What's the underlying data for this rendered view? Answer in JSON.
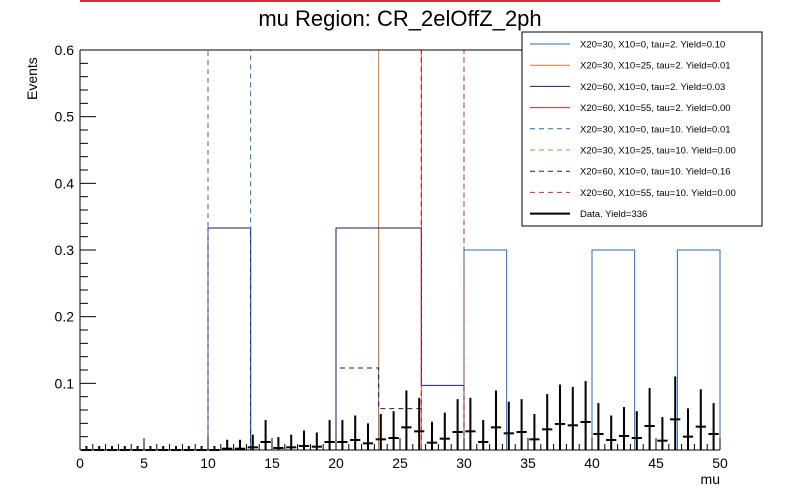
{
  "chart_data": {
    "type": "histogram",
    "title": "mu Region: CR_2elOffZ_2ph",
    "xlabel": "mu",
    "ylabel": "Events",
    "xlim": [
      0,
      50
    ],
    "ylim": [
      0,
      0.6
    ],
    "xticks": [
      0,
      5,
      10,
      15,
      20,
      25,
      30,
      35,
      40,
      45,
      50
    ],
    "yticks": [
      0.1,
      0.2,
      0.3,
      0.4,
      0.5,
      0.6
    ],
    "xtick_labels": [
      "0",
      "5",
      "10",
      "15",
      "20",
      "25",
      "30",
      "35",
      "40",
      "45",
      "50"
    ],
    "ytick_labels": [
      "0.1",
      "0.2",
      "0.3",
      "0.4",
      "0.5",
      "0.6"
    ],
    "bin_edges": [
      0,
      3.33,
      6.67,
      10,
      13.33,
      16.67,
      20,
      23.33,
      26.67,
      30,
      33.33,
      36.67,
      40,
      43.33,
      46.67,
      50
    ],
    "legend_position": "top-right",
    "series": [
      {
        "name": "X20=30, X10=0, tau=2. Yield=0.10",
        "color": "#1f6fc5",
        "style": "solid",
        "values": [
          0,
          0,
          0,
          0.333,
          0,
          0,
          0.333,
          0,
          0,
          0.3,
          0,
          0,
          0.3,
          0,
          0.3
        ]
      },
      {
        "name": "X20=30, X10=25, tau=2. Yield=0.01",
        "color": "#e0762a",
        "style": "solid",
        "values": [
          0,
          0,
          0,
          0,
          0,
          0,
          0,
          0.6,
          0,
          0,
          0,
          0,
          0,
          0,
          0
        ]
      },
      {
        "name": "X20=60, X10=0, tau=2. Yield=0.03",
        "color": "#1a1a7a",
        "style": "solid",
        "values": [
          0,
          0,
          0,
          0.333,
          0,
          0,
          0.333,
          0.333,
          0.097,
          0,
          0,
          0,
          0,
          0,
          0
        ]
      },
      {
        "name": "X20=60, X10=55, tau=2. Yield=0.00",
        "color": "#d62728",
        "style": "solid",
        "values": [
          0,
          0,
          0,
          0,
          0,
          0,
          0,
          0,
          0,
          0,
          0,
          0,
          0,
          0,
          0
        ]
      },
      {
        "name": "X20=30, X10=0, tau=10. Yield=0.01",
        "color": "#1f6fc5",
        "style": "dashed",
        "values": [
          0,
          0,
          0,
          0.6,
          0,
          0,
          0,
          0,
          0,
          0,
          0,
          0,
          0,
          0,
          0
        ]
      },
      {
        "name": "X20=30, X10=25, tau=10. Yield=0.00",
        "color": "#e0762a",
        "style": "dashed",
        "values": [
          0,
          0,
          0,
          0,
          0,
          0,
          0,
          0,
          0,
          0,
          0,
          0,
          0,
          0,
          0
        ]
      },
      {
        "name": "X20=60, X10=0, tau=10. Yield=0.16",
        "color": "#1a1a7a",
        "style": "dashed",
        "values": [
          0,
          0,
          0,
          0,
          0,
          0,
          0.123,
          0.062,
          0.6,
          0,
          0,
          0,
          0,
          0,
          0
        ]
      },
      {
        "name": "X20=60, X10=55, tau=10. Yield=0.00",
        "color": "#d62728",
        "style": "dashed",
        "values": [
          0,
          0,
          0,
          0,
          0,
          0,
          0,
          0,
          0.6,
          0,
          0,
          0,
          0,
          0,
          0
        ]
      }
    ],
    "data": {
      "name": "Data. Yield=336",
      "color": "#000000",
      "x": [
        0.5,
        1.5,
        2.5,
        3.5,
        4.5,
        5.5,
        6.5,
        7.5,
        8.5,
        9.5,
        10.5,
        11.5,
        12.5,
        13.5,
        14.5,
        15.5,
        16.5,
        17.5,
        18.5,
        19.5,
        20.5,
        21.5,
        22.5,
        23.5,
        24.5,
        25.5,
        26.5,
        27.5,
        28.5,
        29.5,
        30.5,
        31.5,
        32.5,
        33.5,
        34.5,
        35.5,
        36.5,
        37.5,
        38.5,
        39.5,
        40.5,
        41.5,
        42.5,
        43.5,
        44.5,
        45.5,
        46.5,
        47.5,
        48.5,
        49.5
      ],
      "y": [
        0,
        0,
        0,
        0,
        0,
        0,
        0,
        0,
        0,
        0,
        0,
        0.002,
        0.002,
        0.004,
        0.012,
        0.003,
        0.004,
        0.006,
        0.005,
        0.012,
        0.012,
        0.015,
        0.01,
        0.016,
        0.018,
        0.034,
        0.028,
        0.011,
        0.017,
        0.027,
        0.028,
        0.012,
        0.034,
        0.025,
        0.027,
        0.016,
        0.031,
        0.039,
        0.037,
        0.042,
        0.024,
        0.015,
        0.021,
        0.018,
        0.036,
        0.014,
        0.046,
        0.02,
        0.035,
        0.024
      ]
    }
  }
}
